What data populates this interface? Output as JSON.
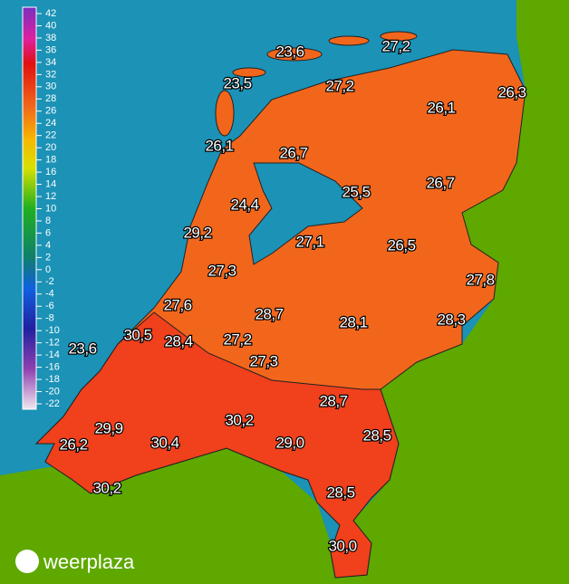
{
  "legend": {
    "ticks": [
      42,
      40,
      38,
      36,
      34,
      32,
      30,
      28,
      26,
      24,
      22,
      20,
      18,
      16,
      14,
      12,
      10,
      8,
      6,
      4,
      2,
      0,
      -2,
      -4,
      -6,
      -8,
      -10,
      -12,
      -14,
      -16,
      -18,
      -20,
      -22
    ]
  },
  "stations": [
    {
      "label": "23,6"
    },
    {
      "label": "27,2"
    },
    {
      "label": "23,5"
    },
    {
      "label": "27,2"
    },
    {
      "label": "26,3"
    },
    {
      "label": "26,1"
    },
    {
      "label": "26,1"
    },
    {
      "label": "26,7"
    },
    {
      "label": "26,7"
    },
    {
      "label": "25,5"
    },
    {
      "label": "24,4"
    },
    {
      "label": "29,2"
    },
    {
      "label": "27,1"
    },
    {
      "label": "26,5"
    },
    {
      "label": "27,3"
    },
    {
      "label": "27,8"
    },
    {
      "label": "27,6"
    },
    {
      "label": "28,7"
    },
    {
      "label": "28,1"
    },
    {
      "label": "28,3"
    },
    {
      "label": "30,5"
    },
    {
      "label": "23,6"
    },
    {
      "label": "28,4"
    },
    {
      "label": "27,2"
    },
    {
      "label": "27,3"
    },
    {
      "label": "28,7"
    },
    {
      "label": "30,2"
    },
    {
      "label": "29,9"
    },
    {
      "label": "28,5"
    },
    {
      "label": "29,0"
    },
    {
      "label": "26,2"
    },
    {
      "label": "30,4"
    },
    {
      "label": "30,2"
    },
    {
      "label": "28,5"
    },
    {
      "label": "30,0"
    }
  ],
  "logo": "weerplaza"
}
